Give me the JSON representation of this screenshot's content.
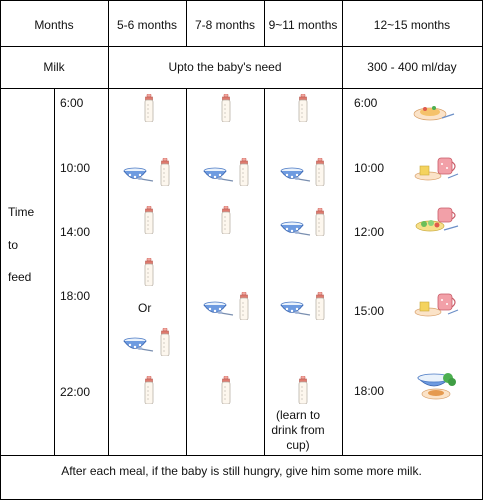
{
  "header": {
    "months_label": "Months",
    "col_5_6": "5-6 months",
    "col_7_8": "7-8 months",
    "col_9_11": "9~11 months",
    "col_12_15": "12~15 months"
  },
  "milk_row": {
    "label": "Milk",
    "upto_need": "Upto the baby's need",
    "amount": "300 - 400 ml/day"
  },
  "feed": {
    "label_line1": "Time",
    "label_line2": "to",
    "label_line3": "feed",
    "times": [
      "6:00",
      "10:00",
      "14:00",
      "18:00",
      "22:00"
    ],
    "or_text": "Or",
    "cup_note_line1": "(learn to",
    "cup_note_line2": "drink from",
    "cup_note_line3": "cup)",
    "toddler_times": [
      "6:00",
      "10:00",
      "12:00",
      "15:00",
      "18:00"
    ]
  },
  "footer": {
    "note": "After each meal, if the baby is still hungry, give him some more milk."
  }
}
